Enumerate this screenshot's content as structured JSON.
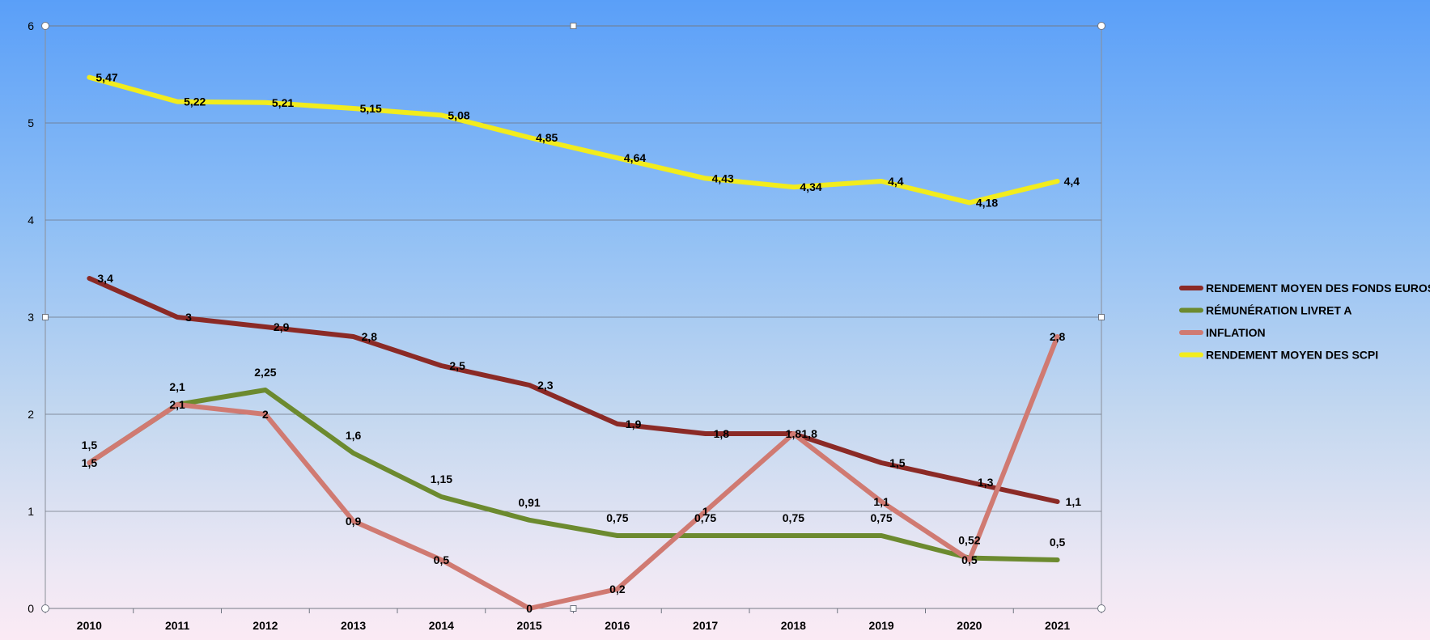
{
  "chart_data": {
    "type": "line",
    "title": "",
    "xlabel": "",
    "ylabel": "",
    "x": [
      "2010",
      "2011",
      "2012",
      "2013",
      "2014",
      "2015",
      "2016",
      "2017",
      "2018",
      "2019",
      "2020",
      "2021"
    ],
    "ylim": [
      0,
      6
    ],
    "yticks": [
      "0",
      "1",
      "2",
      "3",
      "4",
      "5",
      "6"
    ],
    "grid": true,
    "legend_position": "right",
    "series": [
      {
        "name": "RENDEMENT MOYEN DES FONDS EUROS",
        "color": "#8b2a26",
        "values": [
          3.4,
          3,
          2.9,
          2.8,
          2.5,
          2.3,
          1.9,
          1.8,
          1.8,
          1.5,
          1.3,
          1.1
        ],
        "labels": [
          "3,4",
          "3",
          "2,9",
          "2,8",
          "2,5",
          "2,3",
          "1,9",
          "1,8",
          "1,8",
          "1,5",
          "1,3",
          "1,1"
        ]
      },
      {
        "name": "RÉMUNÉRATION LIVRET A",
        "color": "#6c8a2f",
        "values": [
          1.5,
          2.1,
          2.25,
          1.6,
          1.15,
          0.91,
          0.75,
          0.75,
          0.75,
          0.75,
          0.52,
          0.5
        ],
        "labels": [
          "1,5",
          "2,1",
          "2,25",
          "1,6",
          "1,15",
          "0,91",
          "0,75",
          "0,75",
          "0,75",
          "0,75",
          "0,52",
          "0,5"
        ]
      },
      {
        "name": "INFLATION",
        "color": "#d07a72",
        "values": [
          1.5,
          2.1,
          2,
          0.9,
          0.5,
          0,
          0.2,
          1,
          1.8,
          1.1,
          0.5,
          2.8
        ],
        "labels": [
          "1,5",
          "2,1",
          "2",
          "0,9",
          "0,5",
          "0",
          "0,2",
          "1",
          "1,8",
          "1,1",
          "0,5",
          "2,8"
        ]
      },
      {
        "name": "RENDEMENT MOYEN DES SCPI",
        "color": "#f2ec1d",
        "values": [
          5.47,
          5.22,
          5.21,
          5.15,
          5.08,
          4.85,
          4.64,
          4.43,
          4.34,
          4.4,
          4.18,
          4.4
        ],
        "labels": [
          "5,47",
          "5,22",
          "5,21",
          "5,15",
          "5,08",
          "4,85",
          "4,64",
          "4,43",
          "4,34",
          "4,4",
          "4,18",
          "4,4"
        ]
      }
    ]
  }
}
